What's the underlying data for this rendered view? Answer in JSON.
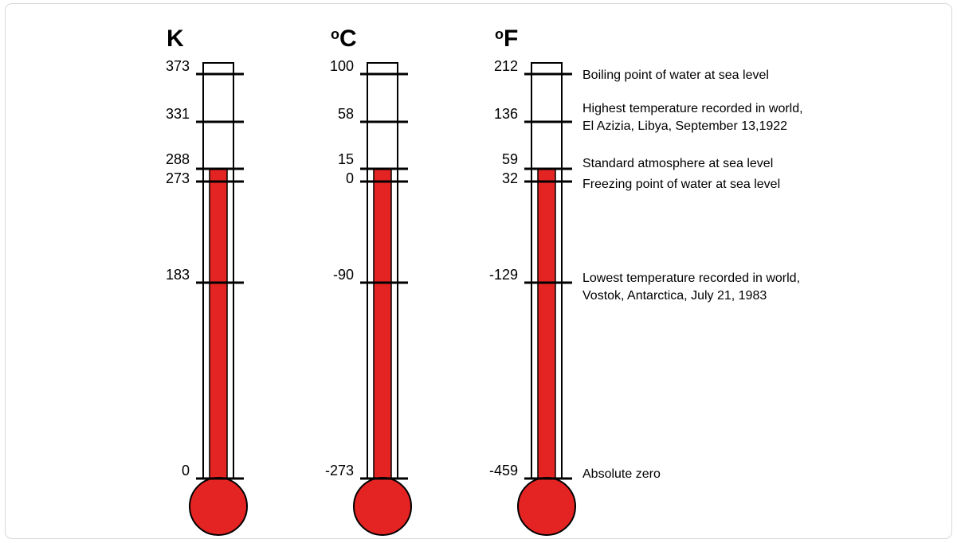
{
  "diagram": {
    "thermometers": [
      {
        "id": "kelvin",
        "title": "K",
        "degree_symbol": "",
        "ticks": [
          {
            "key": "boiling",
            "label": "373"
          },
          {
            "key": "highest",
            "label": "331"
          },
          {
            "key": "standard",
            "label": "288"
          },
          {
            "key": "freezing",
            "label": "273"
          },
          {
            "key": "lowest",
            "label": "183"
          },
          {
            "key": "absolute_zero",
            "label": "0"
          }
        ]
      },
      {
        "id": "celsius",
        "title": "C",
        "degree_symbol": "o",
        "ticks": [
          {
            "key": "boiling",
            "label": "100"
          },
          {
            "key": "highest",
            "label": "58"
          },
          {
            "key": "standard",
            "label": "15"
          },
          {
            "key": "freezing",
            "label": "0"
          },
          {
            "key": "lowest",
            "label": "-90"
          },
          {
            "key": "absolute_zero",
            "label": "-273"
          }
        ]
      },
      {
        "id": "fahrenheit",
        "title": "F",
        "degree_symbol": "o",
        "ticks": [
          {
            "key": "boiling",
            "label": "212"
          },
          {
            "key": "highest",
            "label": "136"
          },
          {
            "key": "standard",
            "label": "59"
          },
          {
            "key": "freezing",
            "label": "32"
          },
          {
            "key": "lowest",
            "label": "-129"
          },
          {
            "key": "absolute_zero",
            "label": "-459"
          }
        ]
      }
    ],
    "mercury_level_key": "standard",
    "annotations": [
      {
        "key": "boiling",
        "lines": [
          "Boiling point of water at sea level"
        ]
      },
      {
        "key": "highest",
        "lines": [
          "Highest temperature recorded in world,",
          "El Azizia, Libya, September 13,1922"
        ]
      },
      {
        "key": "standard",
        "lines": [
          "Standard atmosphere at sea level"
        ]
      },
      {
        "key": "freezing",
        "lines": [
          "Freezing point of water at sea level"
        ]
      },
      {
        "key": "lowest",
        "lines": [
          "Lowest temperature recorded in world,",
          "Vostok, Antarctica, July 21, 1983"
        ]
      },
      {
        "key": "absolute_zero",
        "lines": [
          "Absolute zero"
        ]
      }
    ],
    "colors": {
      "mercury": "#e32423",
      "outline": "#000000"
    }
  }
}
